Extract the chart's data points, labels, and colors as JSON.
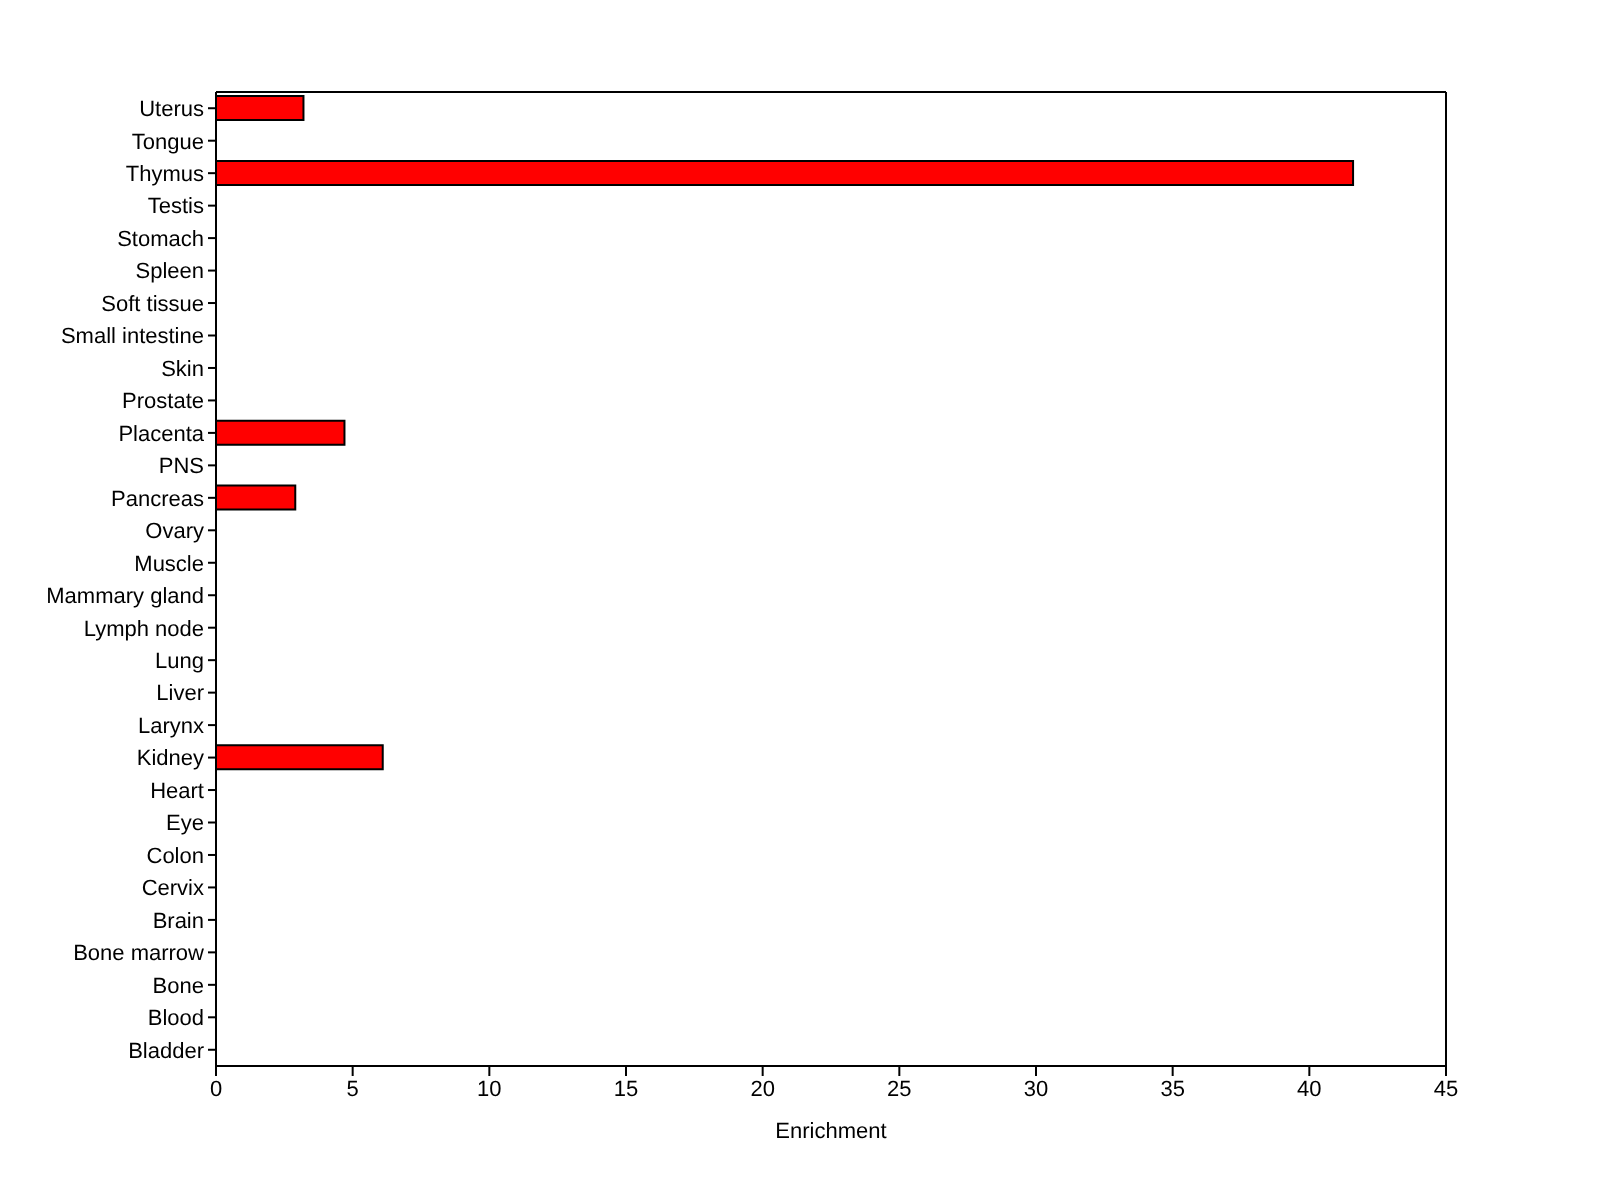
{
  "chart_data": {
    "type": "bar",
    "orientation": "horizontal",
    "xlabel": "Enrichment",
    "categories": [
      "Uterus",
      "Tongue",
      "Thymus",
      "Testis",
      "Stomach",
      "Spleen",
      "Soft tissue",
      "Small intestine",
      "Skin",
      "Prostate",
      "Placenta",
      "PNS",
      "Pancreas",
      "Ovary",
      "Muscle",
      "Mammary gland",
      "Lymph node",
      "Lung",
      "Liver",
      "Larynx",
      "Kidney",
      "Heart",
      "Eye",
      "Colon",
      "Cervix",
      "Brain",
      "Bone marrow",
      "Bone",
      "Blood",
      "Bladder"
    ],
    "values": [
      3.2,
      0,
      41.6,
      0,
      0,
      0,
      0,
      0,
      0,
      0,
      4.7,
      0,
      2.9,
      0,
      0,
      0,
      0,
      0,
      0,
      0,
      6.1,
      0,
      0,
      0,
      0,
      0,
      0,
      0,
      0,
      0
    ],
    "color": "#ff0000",
    "xlim": [
      0,
      45
    ],
    "xticks": [
      0,
      5,
      10,
      15,
      20,
      25,
      30,
      35,
      40,
      45
    ],
    "grid": false,
    "legend": false
  }
}
